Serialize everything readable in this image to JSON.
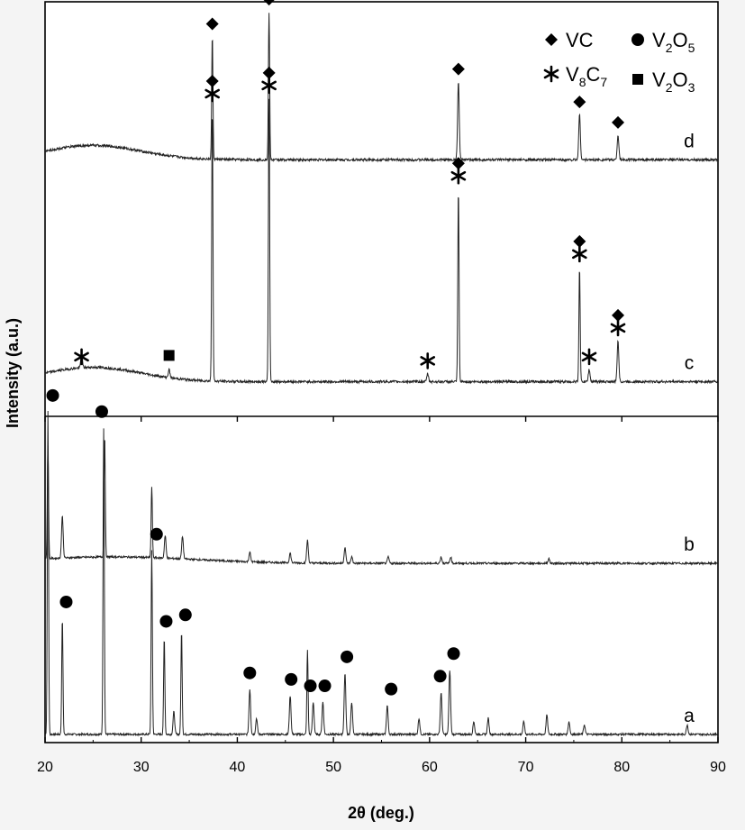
{
  "chart_data": {
    "type": "line",
    "xlabel": "2θ (deg.)",
    "ylabel": "Intensity (a.u.)",
    "xlim": [
      20,
      90
    ],
    "xticks": [
      20,
      30,
      40,
      50,
      60,
      70,
      80,
      90
    ],
    "grid": false,
    "panels": [
      "top",
      "bottom"
    ],
    "legend": {
      "placement": "top-right",
      "entries": [
        {
          "marker": "diamond",
          "text": "VC"
        },
        {
          "marker": "circle",
          "base": "V",
          "sub1": "2",
          "mid": "O",
          "sub2": "5"
        },
        {
          "marker": "asterisk",
          "base": "V",
          "sub1": "8",
          "mid": "C",
          "sub2": "7"
        },
        {
          "marker": "square",
          "base": "V",
          "sub1": "2",
          "mid": "O",
          "sub2": "3"
        }
      ]
    },
    "series": [
      {
        "name": "a",
        "panel": "bottom",
        "baseline": 0.02,
        "peaks": [
          [
            20.3,
            1.0
          ],
          [
            21.8,
            0.36
          ],
          [
            26.1,
            0.95
          ],
          [
            31.1,
            0.57
          ],
          [
            32.4,
            0.3
          ],
          [
            33.4,
            0.07
          ],
          [
            34.2,
            0.32
          ],
          [
            41.3,
            0.14
          ],
          [
            42.0,
            0.05
          ],
          [
            45.5,
            0.12
          ],
          [
            47.3,
            0.26
          ],
          [
            47.9,
            0.1
          ],
          [
            48.9,
            0.1
          ],
          [
            51.2,
            0.19
          ],
          [
            51.9,
            0.1
          ],
          [
            55.6,
            0.09
          ],
          [
            58.9,
            0.05
          ],
          [
            61.2,
            0.13
          ],
          [
            62.1,
            0.2
          ],
          [
            64.6,
            0.04
          ],
          [
            66.1,
            0.05
          ],
          [
            69.8,
            0.04
          ],
          [
            72.2,
            0.06
          ],
          [
            74.5,
            0.04
          ],
          [
            76.1,
            0.03
          ],
          [
            86.8,
            0.03
          ]
        ],
        "markers": [
          [
            20.8,
            "circle"
          ],
          [
            22.2,
            "circle"
          ],
          [
            25.9,
            "circle"
          ],
          [
            31.6,
            "circle"
          ],
          [
            32.6,
            "circle"
          ],
          [
            34.6,
            "circle"
          ],
          [
            41.3,
            "circle"
          ],
          [
            45.6,
            "circle"
          ],
          [
            47.6,
            "circle"
          ],
          [
            49.1,
            "circle"
          ],
          [
            51.4,
            "circle"
          ],
          [
            56.0,
            "circle"
          ],
          [
            61.1,
            "circle"
          ],
          [
            62.5,
            "circle"
          ]
        ]
      },
      {
        "name": "b",
        "panel": "bottom",
        "baseline": 0.55,
        "peaks": [
          [
            20.3,
            0.35
          ],
          [
            21.8,
            0.13
          ],
          [
            26.2,
            0.38
          ],
          [
            31.1,
            0.22
          ],
          [
            32.5,
            0.07
          ],
          [
            34.3,
            0.07
          ],
          [
            41.3,
            0.03
          ],
          [
            45.5,
            0.03
          ],
          [
            47.3,
            0.07
          ],
          [
            51.2,
            0.05
          ],
          [
            51.9,
            0.02
          ],
          [
            55.7,
            0.02
          ],
          [
            61.2,
            0.02
          ],
          [
            62.2,
            0.02
          ],
          [
            72.4,
            0.015
          ]
        ]
      },
      {
        "name": "c",
        "panel": "top",
        "baseline": 0.08,
        "peaks": [
          [
            23.8,
            0.03
          ],
          [
            32.9,
            0.02
          ],
          [
            37.4,
            0.67
          ],
          [
            43.3,
            0.69
          ],
          [
            59.8,
            0.02
          ],
          [
            63.0,
            0.47
          ],
          [
            75.6,
            0.28
          ],
          [
            76.6,
            0.03
          ],
          [
            79.6,
            0.1
          ]
        ],
        "markers": [
          [
            23.8,
            "asterisk"
          ],
          [
            32.9,
            "square"
          ],
          [
            37.4,
            "diamond"
          ],
          [
            37.4,
            "asterisk"
          ],
          [
            43.3,
            "diamond"
          ],
          [
            43.3,
            "asterisk"
          ],
          [
            59.8,
            "asterisk"
          ],
          [
            63.0,
            "diamond"
          ],
          [
            63.0,
            "asterisk"
          ],
          [
            75.6,
            "diamond"
          ],
          [
            75.6,
            "asterisk"
          ],
          [
            76.6,
            "asterisk"
          ],
          [
            79.6,
            "diamond"
          ],
          [
            79.6,
            "asterisk"
          ]
        ]
      },
      {
        "name": "d",
        "panel": "top",
        "baseline": 0.62,
        "peaks": [
          [
            37.4,
            0.3
          ],
          [
            43.3,
            0.36
          ],
          [
            63.0,
            0.19
          ],
          [
            75.6,
            0.11
          ],
          [
            79.6,
            0.06
          ]
        ],
        "markers": [
          [
            37.4,
            "diamond"
          ],
          [
            43.3,
            "diamond"
          ],
          [
            63.0,
            "diamond"
          ],
          [
            75.6,
            "diamond"
          ],
          [
            79.6,
            "diamond"
          ]
        ]
      }
    ]
  }
}
